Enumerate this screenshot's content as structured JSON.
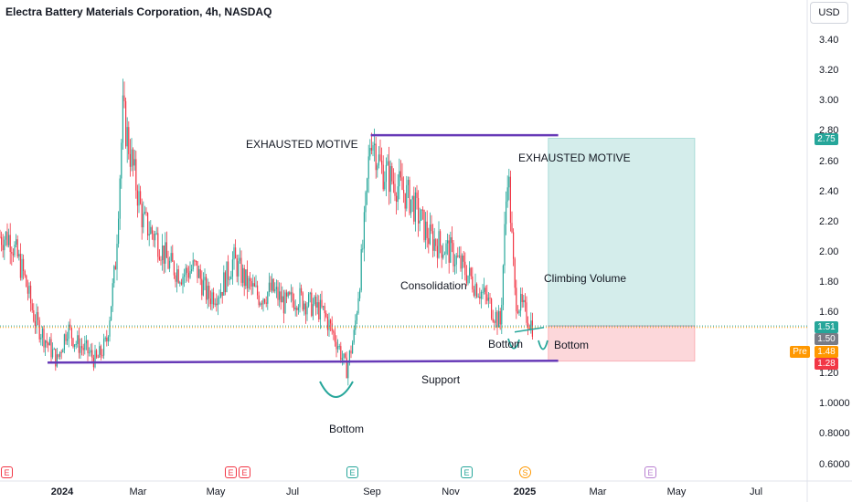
{
  "header": {
    "title": "Electra Battery Materials Corporation, 4h, NASDAQ",
    "currency_button": "USD"
  },
  "price_scale": {
    "ticks": [
      "3.40",
      "3.20",
      "3.00",
      "2.80",
      "2.60",
      "2.40",
      "2.20",
      "2.00",
      "1.80",
      "1.60",
      "1.20",
      "1.0000",
      "0.8000",
      "0.6000"
    ],
    "badges": [
      {
        "value": "2.75",
        "color": "#26a69a"
      },
      {
        "value": "1.51",
        "color": "#26a69a"
      },
      {
        "value": "1.50",
        "color": "#787b86"
      },
      {
        "value": "1.48",
        "color": "#ff9800"
      },
      {
        "value": "1.28",
        "color": "#f23645"
      }
    ],
    "pre_label": "Pre"
  },
  "time_axis": {
    "ticks": [
      "2024",
      "Mar",
      "May",
      "Jul",
      "Sep",
      "Nov",
      "2025",
      "Mar",
      "May",
      "Jul"
    ]
  },
  "events": [
    {
      "letter": "E",
      "color": "#f23645"
    },
    {
      "letter": "E",
      "color": "#f23645"
    },
    {
      "letter": "E",
      "color": "#f23645"
    },
    {
      "letter": "E",
      "color": "#26a69a"
    },
    {
      "letter": "E",
      "color": "#26a69a"
    },
    {
      "letter": "S",
      "color": "#ff9800"
    },
    {
      "letter": "E",
      "color": "#b87fd1"
    }
  ],
  "annotations": {
    "exhausted_motive_1": "EXHAUSTED MOTIVE",
    "exhausted_motive_2": "EXHAUSTED MOTIVE",
    "consolidation": "Consolidation",
    "climbing_volume": "Climbing Volume",
    "bottom_right_1": "Bottom",
    "bottom_right_2": "Bottom",
    "support": "Support",
    "bottom_center": "Bottom"
  },
  "chart_data": {
    "type": "candlestick",
    "title": "Electra Battery Materials Corporation, 4h, NASDAQ",
    "ylim": [
      0.55,
      3.5
    ],
    "y_scale": "log",
    "x_ticks": [
      "2024",
      "Mar",
      "May",
      "Jul",
      "Sep",
      "Nov",
      "2025",
      "Mar",
      "May",
      "Jul"
    ],
    "price_path": [
      [
        "2023-11-20",
        2.1
      ],
      [
        "2023-12-01",
        1.85
      ],
      [
        "2023-12-10",
        1.55
      ],
      [
        "2023-12-20",
        1.4
      ],
      [
        "2023-12-28",
        1.28
      ],
      [
        "2024-01-05",
        1.5
      ],
      [
        "2024-01-12",
        1.4
      ],
      [
        "2024-01-20",
        1.35
      ],
      [
        "2024-01-28",
        1.28
      ],
      [
        "2024-02-05",
        1.4
      ],
      [
        "2024-02-12",
        1.9
      ],
      [
        "2024-02-18",
        2.92
      ],
      [
        "2024-02-25",
        2.6
      ],
      [
        "2024-03-05",
        2.2
      ],
      [
        "2024-03-15",
        2.1
      ],
      [
        "2024-03-25",
        1.92
      ],
      [
        "2024-04-05",
        1.85
      ],
      [
        "2024-04-15",
        1.9
      ],
      [
        "2024-04-25",
        1.7
      ],
      [
        "2024-05-05",
        1.75
      ],
      [
        "2024-05-15",
        1.95
      ],
      [
        "2024-05-25",
        1.8
      ],
      [
        "2024-06-05",
        1.7
      ],
      [
        "2024-06-15",
        1.75
      ],
      [
        "2024-06-25",
        1.65
      ],
      [
        "2024-07-05",
        1.7
      ],
      [
        "2024-07-15",
        1.65
      ],
      [
        "2024-07-25",
        1.6
      ],
      [
        "2024-08-05",
        1.4
      ],
      [
        "2024-08-12",
        1.22
      ],
      [
        "2024-08-18",
        1.45
      ],
      [
        "2024-08-25",
        2.05
      ],
      [
        "2024-08-31",
        2.8
      ],
      [
        "2024-09-08",
        2.55
      ],
      [
        "2024-09-20",
        2.45
      ],
      [
        "2024-10-01",
        2.35
      ],
      [
        "2024-10-15",
        2.1
      ],
      [
        "2024-11-01",
        2.0
      ],
      [
        "2024-11-15",
        1.85
      ],
      [
        "2024-12-01",
        1.68
      ],
      [
        "2024-12-12",
        1.52
      ],
      [
        "2024-12-18",
        2.58
      ],
      [
        "2024-12-24",
        1.7
      ],
      [
        "2025-01-01",
        1.6
      ],
      [
        "2025-01-08",
        1.5
      ]
    ],
    "support_level": 1.27,
    "resistance_level": 2.77,
    "position": {
      "target": 2.75,
      "entry": 1.51,
      "stop": 1.28
    },
    "last_price": 1.5,
    "premarket_price": 1.48
  }
}
